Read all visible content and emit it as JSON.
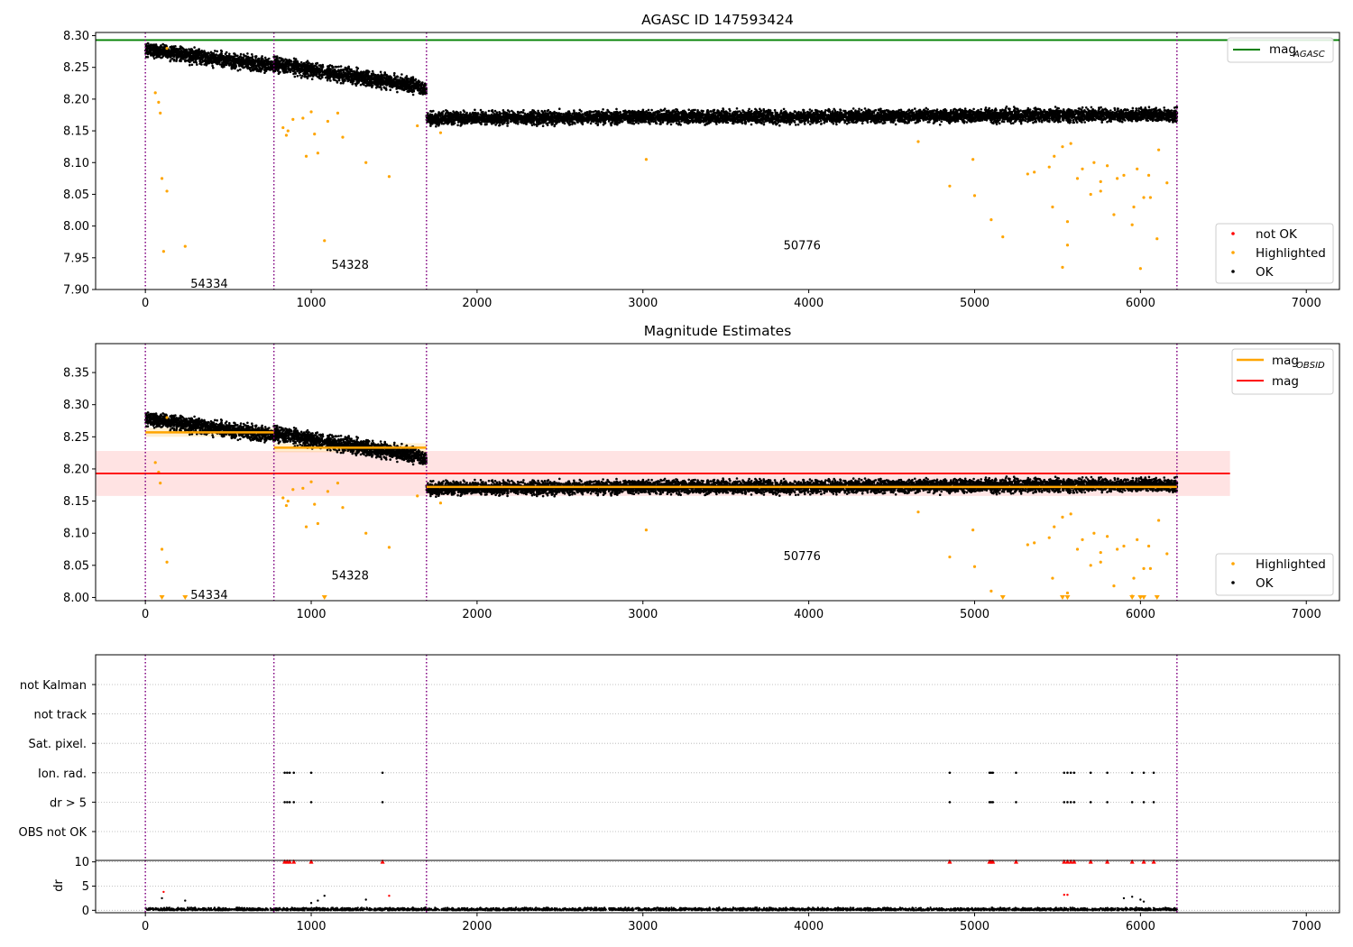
{
  "chart_data": [
    {
      "panel": "magnitude-time-series",
      "type": "scatter",
      "title": "AGASC ID 147593424",
      "xlim": [
        -300,
        7200
      ],
      "ylim": [
        7.9,
        8.305
      ],
      "xticks": [
        "0",
        "1000",
        "2000",
        "3000",
        "4000",
        "5000",
        "6000",
        "7000"
      ],
      "yticks": [
        "7.90",
        "7.95",
        "8.00",
        "8.05",
        "8.10",
        "8.15",
        "8.20",
        "8.25",
        "8.30"
      ],
      "grid": false,
      "reference_line": {
        "name": "mag_AGASC",
        "value": 8.293,
        "color": "#008000"
      },
      "obsid_boundaries": [
        0,
        775,
        1695,
        6220
      ],
      "obsid_labels": [
        {
          "text": "54334",
          "x": 385,
          "y": 7.91
        },
        {
          "text": "54328",
          "x": 1235,
          "y": 7.94
        },
        {
          "text": "50776",
          "x": 3960,
          "y": 7.97
        }
      ],
      "segments_ok": [
        {
          "x0": 0,
          "x1": 775,
          "y0": 8.278,
          "y1": 8.252,
          "noise": 0.008
        },
        {
          "x0": 775,
          "x1": 1695,
          "y0": 8.255,
          "y1": 8.218,
          "noise": 0.008
        },
        {
          "x0": 1695,
          "x1": 6220,
          "y0": 8.17,
          "y1": 8.175,
          "noise": 0.007
        }
      ],
      "highlighted_points": [
        [
          60,
          8.21
        ],
        [
          80,
          8.195
        ],
        [
          90,
          8.178
        ],
        [
          100,
          8.075
        ],
        [
          110,
          7.96
        ],
        [
          130,
          8.055
        ],
        [
          130,
          8.28
        ],
        [
          240,
          7.968
        ],
        [
          830,
          8.155
        ],
        [
          850,
          8.143
        ],
        [
          860,
          8.15
        ],
        [
          890,
          8.168
        ],
        [
          950,
          8.17
        ],
        [
          970,
          8.11
        ],
        [
          1000,
          8.18
        ],
        [
          1020,
          8.145
        ],
        [
          1040,
          8.115
        ],
        [
          1080,
          7.977
        ],
        [
          1100,
          8.165
        ],
        [
          1160,
          8.178
        ],
        [
          1190,
          8.14
        ],
        [
          1330,
          8.1
        ],
        [
          1470,
          8.078
        ],
        [
          1640,
          8.158
        ],
        [
          1780,
          8.147
        ],
        [
          3020,
          8.105
        ],
        [
          4660,
          8.133
        ],
        [
          4850,
          8.063
        ],
        [
          4990,
          8.105
        ],
        [
          5000,
          8.048
        ],
        [
          5100,
          8.01
        ],
        [
          5170,
          7.983
        ],
        [
          5320,
          8.082
        ],
        [
          5360,
          8.085
        ],
        [
          5450,
          8.093
        ],
        [
          5470,
          8.03
        ],
        [
          5480,
          8.11
        ],
        [
          5530,
          8.125
        ],
        [
          5530,
          7.935
        ],
        [
          5560,
          8.007
        ],
        [
          5560,
          7.97
        ],
        [
          5580,
          8.13
        ],
        [
          5620,
          8.075
        ],
        [
          5650,
          8.09
        ],
        [
          5700,
          8.05
        ],
        [
          5720,
          8.1
        ],
        [
          5760,
          8.055
        ],
        [
          5760,
          8.07
        ],
        [
          5800,
          8.095
        ],
        [
          5840,
          8.018
        ],
        [
          5860,
          8.075
        ],
        [
          5900,
          8.08
        ],
        [
          5950,
          8.002
        ],
        [
          5960,
          8.03
        ],
        [
          5980,
          8.09
        ],
        [
          6000,
          7.933
        ],
        [
          6020,
          8.045
        ],
        [
          6050,
          8.08
        ],
        [
          6060,
          8.045
        ],
        [
          6100,
          7.98
        ],
        [
          6110,
          8.12
        ],
        [
          6160,
          8.068
        ]
      ],
      "legend": [
        {
          "label": "mag",
          "subscript": "AGASC",
          "color": "#008000",
          "marker": "line"
        },
        {
          "label": "not OK",
          "color": "#ff0000",
          "marker": "dot"
        },
        {
          "label": "Highlighted",
          "color": "#ffa500",
          "marker": "dot"
        },
        {
          "label": "OK",
          "color": "#000000",
          "marker": "dot"
        }
      ]
    },
    {
      "panel": "magnitude-estimates",
      "type": "scatter",
      "title": "Magnitude Estimates",
      "xlim": [
        -300,
        7200
      ],
      "ylim": [
        7.995,
        8.395
      ],
      "xticks": [
        "0",
        "1000",
        "2000",
        "3000",
        "4000",
        "5000",
        "6000",
        "7000"
      ],
      "yticks": [
        "8.00",
        "8.05",
        "8.10",
        "8.15",
        "8.20",
        "8.25",
        "8.30",
        "8.35"
      ],
      "grid": false,
      "mag_line": {
        "value": 8.193,
        "band": [
          8.158,
          8.228
        ],
        "x0": -300,
        "x1": 6540,
        "color": "#ff0000"
      },
      "mag_obsid": [
        {
          "x0": 0,
          "x1": 775,
          "value": 8.257,
          "band": [
            8.25,
            8.264
          ]
        },
        {
          "x0": 775,
          "x1": 1695,
          "value": 8.233,
          "band": [
            8.226,
            8.24
          ]
        },
        {
          "x0": 1695,
          "x1": 6220,
          "value": 8.172,
          "band": [
            8.168,
            8.176
          ]
        }
      ],
      "obsid_labels": [
        {
          "text": "54334",
          "x": 385,
          "y": 8.005
        },
        {
          "text": "54328",
          "x": 1235,
          "y": 8.035
        },
        {
          "text": "50776",
          "x": 3960,
          "y": 8.065
        }
      ],
      "clipped_below_markers": [
        100,
        240,
        1080,
        5170,
        5530,
        5560,
        5950,
        6000,
        6020,
        6100
      ],
      "legend": [
        {
          "label": "mag",
          "subscript": "OBSID",
          "color": "#ffa500",
          "marker": "line"
        },
        {
          "label": "mag",
          "color": "#ff0000",
          "marker": "line"
        },
        {
          "label": "Highlighted",
          "color": "#ffa500",
          "marker": "dot"
        },
        {
          "label": "OK",
          "color": "#000000",
          "marker": "dot"
        }
      ]
    },
    {
      "panel": "flags",
      "type": "scatter",
      "xlim": [
        -300,
        7200
      ],
      "categories": [
        "not Kalman",
        "not track",
        "Sat. pixel.",
        "Ion. rad.",
        "dr > 5",
        "OBS not OK"
      ],
      "flag_points": {
        "Ion. rad.": [
          840,
          855,
          870,
          895,
          1000,
          1430,
          4850,
          5090,
          5100,
          5110,
          5250,
          5540,
          5560,
          5580,
          5600,
          5700,
          5800,
          5950,
          6020,
          6080
        ],
        "dr > 5": [
          840,
          855,
          870,
          895,
          1000,
          1430,
          4850,
          5090,
          5100,
          5110,
          5250,
          5540,
          5560,
          5580,
          5600,
          5700,
          5800,
          5950,
          6020,
          6080
        ]
      },
      "grid": "horizontal dotted"
    },
    {
      "panel": "dr",
      "type": "scatter",
      "ylabel": "dr",
      "xlim": [
        -300,
        7200
      ],
      "ylim": [
        -0.5,
        10.3
      ],
      "yticks": [
        "0",
        "5",
        "10"
      ],
      "xticks": [
        "0",
        "1000",
        "2000",
        "3000",
        "4000",
        "5000",
        "6000",
        "7000"
      ],
      "clipped_above_markers": [
        840,
        855,
        870,
        895,
        1000,
        1430,
        4850,
        5090,
        5100,
        5110,
        5250,
        5540,
        5560,
        5580,
        5600,
        5700,
        5800,
        5950,
        6020,
        6080
      ],
      "outlier_points": [
        [
          110,
          3.8,
          "red"
        ],
        [
          100,
          2.5,
          "black"
        ],
        [
          240,
          2,
          "black"
        ],
        [
          1000,
          1.5,
          "black"
        ],
        [
          1040,
          2,
          "black"
        ],
        [
          1080,
          3,
          "black"
        ],
        [
          1330,
          2.2,
          "black"
        ],
        [
          1470,
          3,
          "red"
        ],
        [
          5540,
          3.2,
          "red"
        ],
        [
          5560,
          3.2,
          "red"
        ],
        [
          5900,
          2.5,
          "black"
        ],
        [
          5950,
          2.8,
          "black"
        ],
        [
          6000,
          2.2,
          "black"
        ],
        [
          6020,
          1.8,
          "black"
        ]
      ]
    }
  ]
}
